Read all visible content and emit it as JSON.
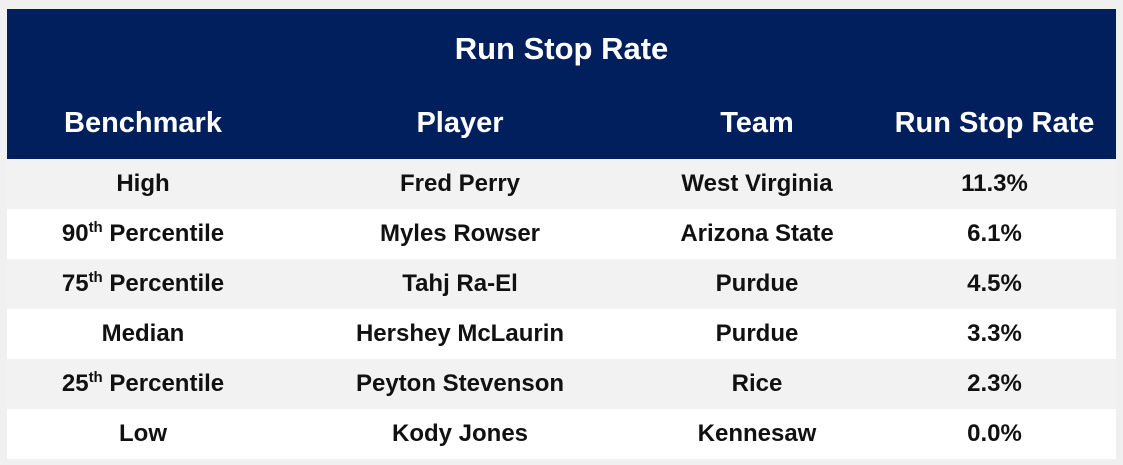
{
  "chart_data": {
    "type": "table",
    "title": "Run Stop Rate",
    "columns": [
      "Benchmark",
      "Player",
      "Team",
      "Run Stop Rate"
    ],
    "rows": [
      {
        "benchmark": "High",
        "sup": "",
        "benchmark_rest": "",
        "player": "Fred Perry",
        "team": "West Virginia",
        "rate": "11.3%"
      },
      {
        "benchmark": "90",
        "sup": "th",
        "benchmark_rest": " Percentile",
        "player": "Myles Rowser",
        "team": "Arizona State",
        "rate": "6.1%"
      },
      {
        "benchmark": "75",
        "sup": "th",
        "benchmark_rest": " Percentile",
        "player": "Tahj Ra-El",
        "team": "Purdue",
        "rate": "4.5%"
      },
      {
        "benchmark": "Median",
        "sup": "",
        "benchmark_rest": "",
        "player": "Hershey McLaurin",
        "team": "Purdue",
        "rate": "3.3%"
      },
      {
        "benchmark": "25",
        "sup": "th",
        "benchmark_rest": " Percentile",
        "player": "Peyton Stevenson",
        "team": "Rice",
        "rate": "2.3%"
      },
      {
        "benchmark": "Low",
        "sup": "",
        "benchmark_rest": "",
        "player": "Kody Jones",
        "team": "Kennesaw",
        "rate": "0.0%"
      }
    ],
    "colors": {
      "header": "#001f5c",
      "row_alt": "#f2f2f2",
      "row": "#ffffff"
    }
  }
}
